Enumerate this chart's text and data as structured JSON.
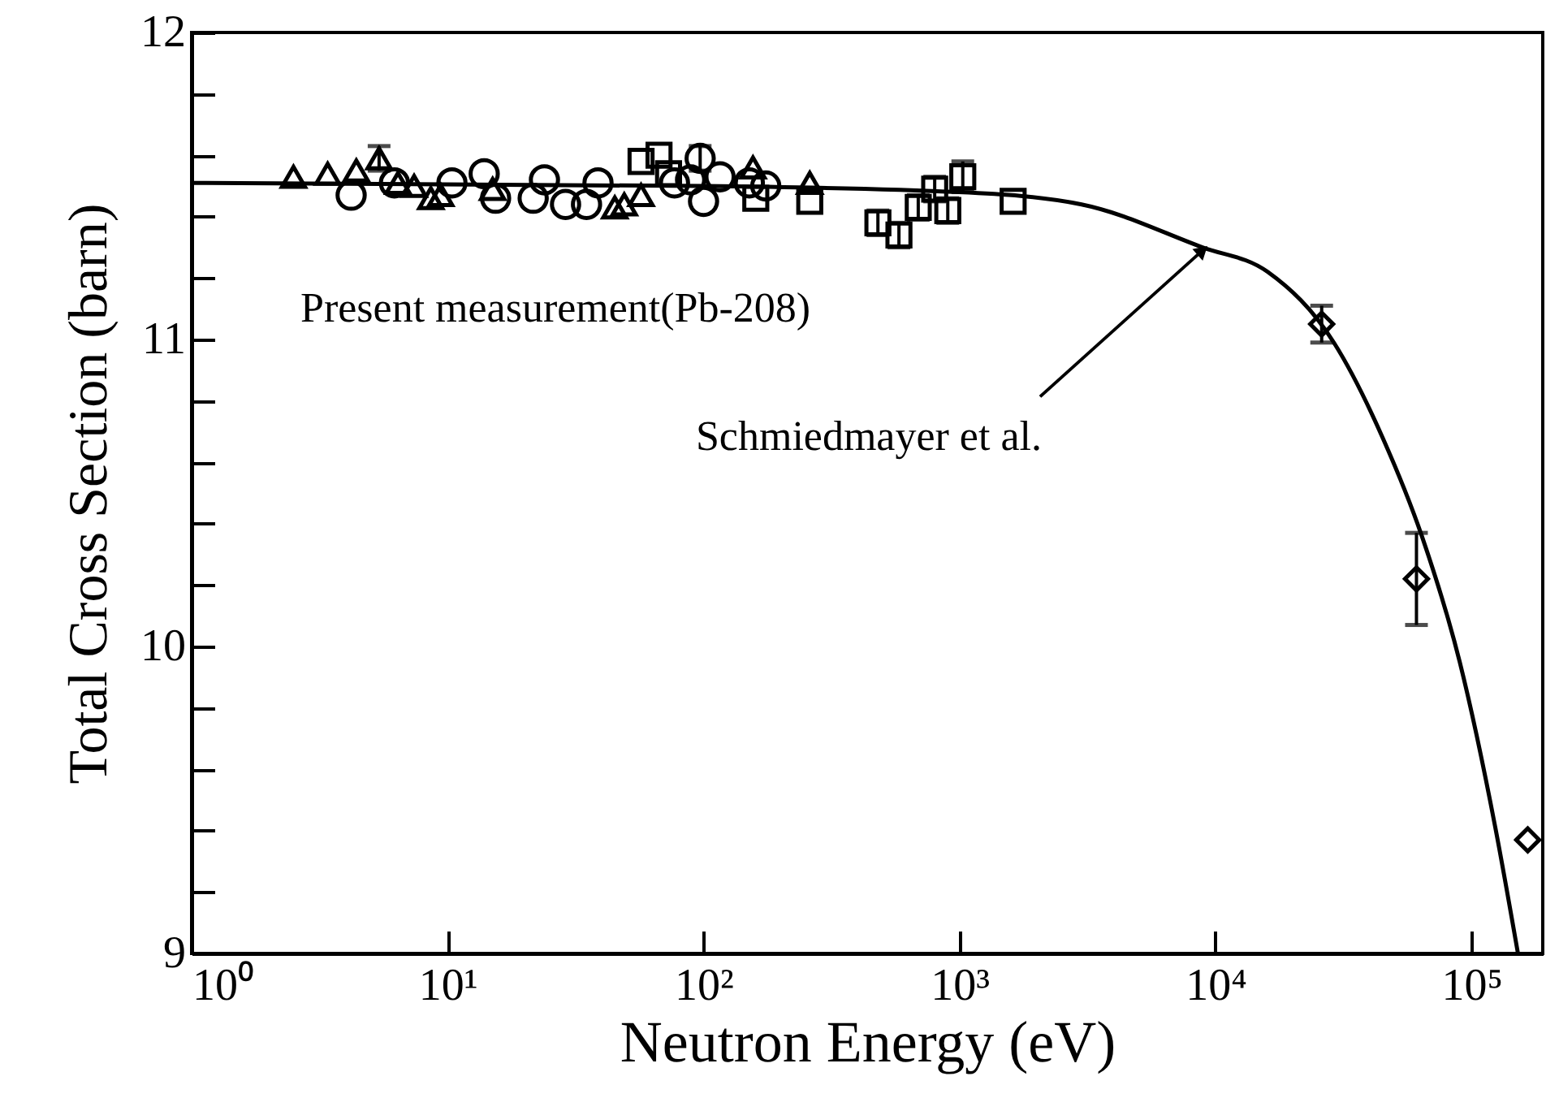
{
  "chart_data": {
    "type": "scatter",
    "xlabel": "Neutron Energy (eV)",
    "ylabel": "Total Cross Section (barn)",
    "log": "x",
    "grid": false,
    "xlim": [
      1,
      190000
    ],
    "xticks": [
      {
        "value": 1,
        "label": "10⁰"
      },
      {
        "value": 10,
        "label": "10¹"
      },
      {
        "value": 100,
        "label": "10²"
      },
      {
        "value": 1000,
        "label": "10³"
      },
      {
        "value": 10000,
        "label": "10⁴"
      },
      {
        "value": 100000,
        "label": "10⁵"
      }
    ],
    "ylim": [
      9,
      12
    ],
    "yticks": [
      9,
      {
        "value": 9.2,
        "label": null
      },
      {
        "value": 9.4,
        "label": null
      },
      {
        "value": 9.6,
        "label": null
      },
      {
        "value": 9.8,
        "label": null
      },
      10,
      {
        "value": 10.2,
        "label": null
      },
      {
        "value": 10.4,
        "label": null
      },
      {
        "value": 10.6,
        "label": null
      },
      {
        "value": 10.8,
        "label": null
      },
      11,
      {
        "value": 11.2,
        "label": null
      },
      {
        "value": 11.4,
        "label": null
      },
      {
        "value": 11.6,
        "label": null
      },
      {
        "value": 11.8,
        "label": null
      },
      12
    ],
    "series": [
      {
        "type": "line",
        "color": "#000000",
        "x": [
          1,
          100,
          1000,
          3000,
          8900,
          16000,
          29000,
          45000,
          64000,
          90000,
          124000,
          152000
        ],
        "values": [
          11.51,
          11.5,
          11.48,
          11.44,
          11.3,
          11.22,
          10.99,
          10.68,
          10.36,
          9.95,
          9.41,
          9.0
        ]
      },
      {
        "type": "scatter",
        "marker": "triangle",
        "color": "#000000",
        "x": [
          2.5,
          3.4,
          4.4,
          5.4,
          6.4,
          7.4,
          8.6,
          9.4,
          15,
          45,
          49,
          57,
          156,
          260
        ],
        "values": [
          11.53,
          11.54,
          11.55,
          11.59,
          11.51,
          11.5,
          11.46,
          11.47,
          11.49,
          11.43,
          11.44,
          11.47,
          11.56,
          11.51
        ],
        "errors": [
          null,
          null,
          null,
          0.04,
          null,
          null,
          null,
          null,
          null,
          null,
          null,
          null,
          null,
          null
        ]
      },
      {
        "type": "scatter",
        "marker": "circle",
        "color": "#000000",
        "x": [
          4.2,
          6.2,
          10.4,
          13.9,
          15.4,
          21.6,
          23.9,
          28.9,
          34.9,
          38.7,
          77,
          89,
          97,
          100,
          116,
          151,
          175
        ],
        "values": [
          11.47,
          11.51,
          11.51,
          11.54,
          11.46,
          11.46,
          11.52,
          11.44,
          11.44,
          11.51,
          11.51,
          11.52,
          11.59,
          11.45,
          11.53,
          11.51,
          11.5
        ],
        "errors": [
          null,
          null,
          null,
          null,
          null,
          null,
          null,
          null,
          null,
          null,
          null,
          null,
          0.04,
          null,
          null,
          null,
          null
        ]
      },
      {
        "type": "scatter",
        "marker": "square",
        "color": "#000000",
        "x": [
          57,
          67,
          73,
          160,
          260,
          480,
          580,
          690,
          800,
          900,
          1030,
          1620
        ],
        "values": [
          11.58,
          11.6,
          11.54,
          11.46,
          11.45,
          11.38,
          11.34,
          11.43,
          11.49,
          11.42,
          11.53,
          11.45
        ],
        "errors": [
          null,
          null,
          null,
          null,
          null,
          0.04,
          0.04,
          0.04,
          0.04,
          0.04,
          0.05,
          null
        ]
      },
      {
        "type": "scatter",
        "marker": "diamond",
        "color": "#000000",
        "x": [
          26000,
          61000,
          166000
        ],
        "values": [
          11.05,
          10.22,
          9.37
        ],
        "errors": [
          0.06,
          0.15,
          null
        ]
      }
    ],
    "annotations": [
      "Present measurement(Pb-208)",
      {
        "text": "Schmiedmayer et al.",
        "x": 8900,
        "y": 11.29
      }
    ]
  }
}
